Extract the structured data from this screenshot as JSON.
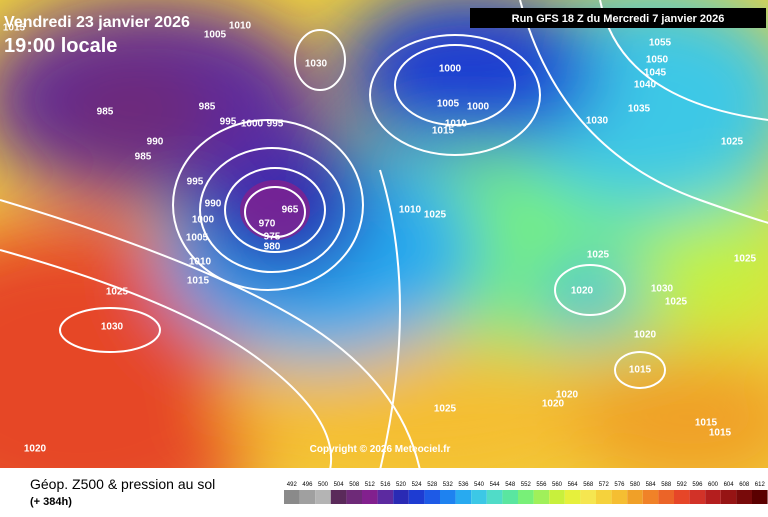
{
  "header": {
    "date": "Vendredi 23 janvier 2026",
    "time": "19:00 locale",
    "run": "Run GFS 18 Z du Mercredi 7 janvier 2026"
  },
  "map": {
    "isobar_labels": [
      1015,
      985,
      990,
      985,
      985,
      995,
      1000,
      995,
      995,
      990,
      1000,
      1005,
      1010,
      1015,
      1025,
      1030,
      1020,
      970,
      965,
      975,
      980,
      1030,
      1000,
      1005,
      1000,
      1010,
      1015,
      1030,
      1035,
      1040,
      1045,
      1050,
      1055,
      1025,
      1025,
      1025,
      1020,
      1030,
      1025,
      1020,
      1015,
      1025,
      1020,
      1020,
      1015,
      1015,
      1010,
      1005,
      1010,
      1025
    ],
    "copyright": "Copyright © 2026 Meteociel.fr"
  },
  "footer": {
    "title": "Géop. Z500 & pression au sol",
    "lead": "(+ 384h)",
    "scale": {
      "values": [
        492,
        496,
        500,
        504,
        508,
        512,
        516,
        520,
        524,
        528,
        532,
        536,
        540,
        544,
        548,
        552,
        556,
        560,
        564,
        568,
        572,
        576,
        580,
        584,
        588,
        592,
        596,
        600,
        604,
        608,
        612
      ],
      "colors": [
        "#8a8a8a",
        "#a0a0a0",
        "#b4b4b4",
        "#5a2a5a",
        "#6e2a78",
        "#82208e",
        "#5c2aa0",
        "#2a2ab4",
        "#1e3cd2",
        "#1e5ae6",
        "#1e82f0",
        "#28aaf0",
        "#3cc8e6",
        "#50dcc8",
        "#5ae6a0",
        "#78f078",
        "#a0f05a",
        "#c8f03c",
        "#e6f03c",
        "#f5e650",
        "#f5d23c",
        "#f5be32",
        "#f0a028",
        "#f08228",
        "#eb6428",
        "#e64628",
        "#d23228",
        "#b41e1e",
        "#961414",
        "#780a0a",
        "#5a0000"
      ]
    }
  }
}
